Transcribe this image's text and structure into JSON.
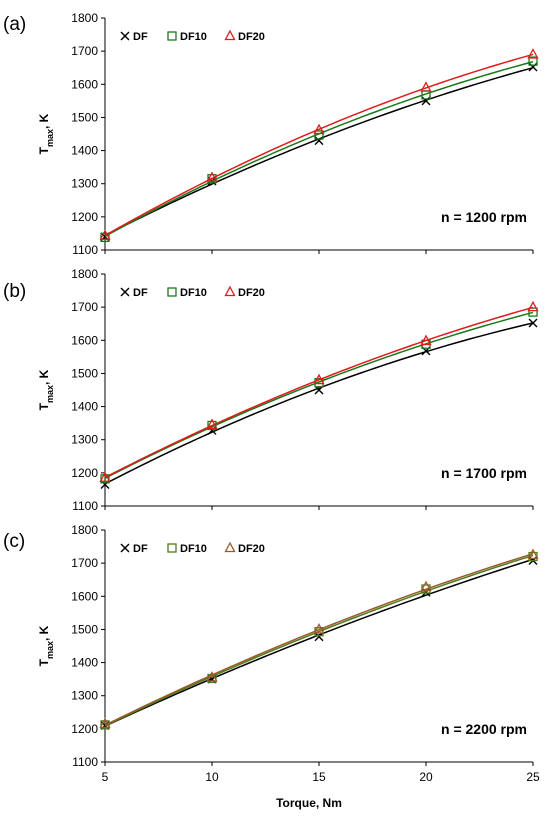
{
  "chart_data": [
    {
      "type": "scatter",
      "panel_label": "(a)",
      "annotation": "n = 1200 rpm",
      "ylabel": "T",
      "ylabel_sub": "max",
      "ylabel_suffix": ", K",
      "xlabel": "",
      "ylim": [
        1100,
        1800
      ],
      "yticks": [
        1100,
        1200,
        1300,
        1400,
        1500,
        1600,
        1700,
        1800
      ],
      "xlim": [
        5,
        25
      ],
      "xticks": [
        5,
        10,
        15,
        20,
        25
      ],
      "legend_position": "top-left",
      "trendlines": true,
      "series": [
        {
          "name": "DF",
          "marker": "x",
          "color": "#000000",
          "x": [
            5,
            10,
            15,
            20,
            25
          ],
          "y": [
            1140,
            1308,
            1430,
            1550,
            1652
          ]
        },
        {
          "name": "DF10",
          "marker": "square",
          "color": "#1a7a1a",
          "x": [
            5,
            10,
            15,
            20,
            25
          ],
          "y": [
            1138,
            1315,
            1447,
            1568,
            1670
          ]
        },
        {
          "name": "DF20",
          "marker": "triangle",
          "color": "#e31a1c",
          "x": [
            5,
            10,
            15,
            20,
            25
          ],
          "y": [
            1143,
            1318,
            1462,
            1590,
            1690
          ]
        }
      ]
    },
    {
      "type": "scatter",
      "panel_label": "(b)",
      "annotation": "n = 1700 rpm",
      "ylabel": "T",
      "ylabel_sub": "max",
      "ylabel_suffix": ", K",
      "xlabel": "",
      "ylim": [
        1100,
        1800
      ],
      "yticks": [
        1100,
        1200,
        1300,
        1400,
        1500,
        1600,
        1700,
        1800
      ],
      "xlim": [
        5,
        25
      ],
      "xticks": [
        5,
        10,
        15,
        20,
        25
      ],
      "legend_position": "top-left",
      "trendlines": true,
      "series": [
        {
          "name": "DF",
          "marker": "x",
          "color": "#000000",
          "x": [
            5,
            10,
            15,
            20,
            25
          ],
          "y": [
            1165,
            1328,
            1450,
            1568,
            1652
          ]
        },
        {
          "name": "DF10",
          "marker": "square",
          "color": "#1a7a1a",
          "x": [
            5,
            10,
            15,
            20,
            25
          ],
          "y": [
            1182,
            1343,
            1472,
            1588,
            1685
          ]
        },
        {
          "name": "DF20",
          "marker": "triangle",
          "color": "#e31a1c",
          "x": [
            5,
            10,
            15,
            20,
            25
          ],
          "y": [
            1185,
            1345,
            1480,
            1598,
            1700
          ]
        }
      ]
    },
    {
      "type": "scatter",
      "panel_label": "(c)",
      "annotation": "n = 2200 rpm",
      "ylabel": "T",
      "ylabel_sub": "max",
      "ylabel_suffix": ", K",
      "xlabel": "Torque, Nm",
      "ylim": [
        1100,
        1800
      ],
      "yticks": [
        1100,
        1200,
        1300,
        1400,
        1500,
        1600,
        1700,
        1800
      ],
      "xlim": [
        5,
        25
      ],
      "xticks": [
        5,
        10,
        15,
        20,
        25
      ],
      "legend_position": "top-left",
      "trendlines": true,
      "series": [
        {
          "name": "DF",
          "marker": "x",
          "color": "#000000",
          "x": [
            5,
            10,
            15,
            20,
            25
          ],
          "y": [
            1210,
            1350,
            1478,
            1612,
            1708
          ]
        },
        {
          "name": "DF10",
          "marker": "square",
          "color": "#4f7a1a",
          "x": [
            5,
            10,
            15,
            20,
            25
          ],
          "y": [
            1212,
            1352,
            1493,
            1622,
            1720
          ]
        },
        {
          "name": "DF20",
          "marker": "triangle",
          "color": "#9a5a2a",
          "x": [
            5,
            10,
            15,
            20,
            25
          ],
          "y": [
            1215,
            1355,
            1500,
            1628,
            1725
          ]
        }
      ]
    }
  ]
}
